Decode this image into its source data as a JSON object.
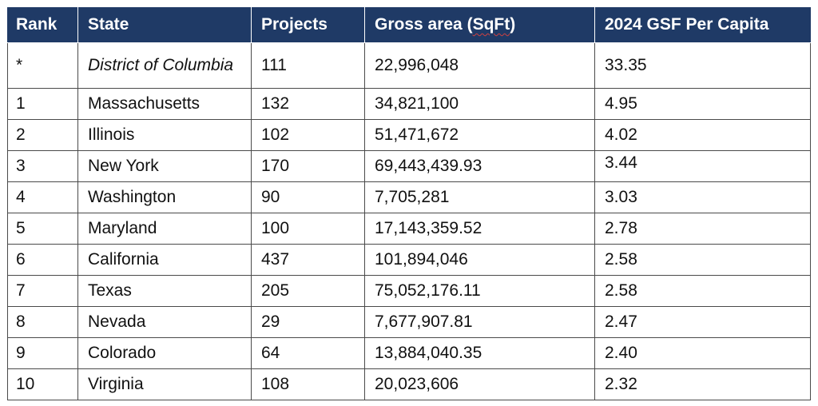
{
  "table": {
    "headers": {
      "rank": "Rank",
      "state": "State",
      "projects": "Projects",
      "gross_area_prefix": "Gross area (",
      "gross_area_unit": "SqFt",
      "gross_area_suffix": ")",
      "gsf_per_capita": "2024 GSF Per Capita"
    },
    "rows": [
      {
        "rank": "*",
        "state": "District of Columbia",
        "projects": "111",
        "gross_area": "22,996,048",
        "gsf": "33.35"
      },
      {
        "rank": "1",
        "state": "Massachusetts",
        "projects": "132",
        "gross_area": "34,821,100",
        "gsf": "4.95"
      },
      {
        "rank": "2",
        "state": "Illinois",
        "projects": "102",
        "gross_area": "51,471,672",
        "gsf": "4.02"
      },
      {
        "rank": "3",
        "state": "New York",
        "projects": "170",
        "gross_area": "69,443,439.93",
        "gsf": "3.44"
      },
      {
        "rank": "4",
        "state": "Washington",
        "projects": "90",
        "gross_area": "7,705,281",
        "gsf": "3.03"
      },
      {
        "rank": "5",
        "state": "Maryland",
        "projects": "100",
        "gross_area": "17,143,359.52",
        "gsf": "2.78"
      },
      {
        "rank": "6",
        "state": "California",
        "projects": "437",
        "gross_area": "101,894,046",
        "gsf": "2.58"
      },
      {
        "rank": "7",
        "state": "Texas",
        "projects": "205",
        "gross_area": "75,052,176.11",
        "gsf": "2.58"
      },
      {
        "rank": "8",
        "state": "Nevada",
        "projects": "29",
        "gross_area": "7,677,907.81",
        "gsf": "2.47"
      },
      {
        "rank": "9",
        "state": "Colorado",
        "projects": "64",
        "gross_area": "13,884,040.35",
        "gsf": "2.40"
      },
      {
        "rank": "10",
        "state": "Virginia",
        "projects": "108",
        "gross_area": "20,023,606",
        "gsf": "2.32"
      }
    ]
  },
  "colors": {
    "header_background": "#1f3a66",
    "header_text": "#ffffff",
    "body_text": "#111111",
    "grid_line": "#4a4a4a"
  }
}
